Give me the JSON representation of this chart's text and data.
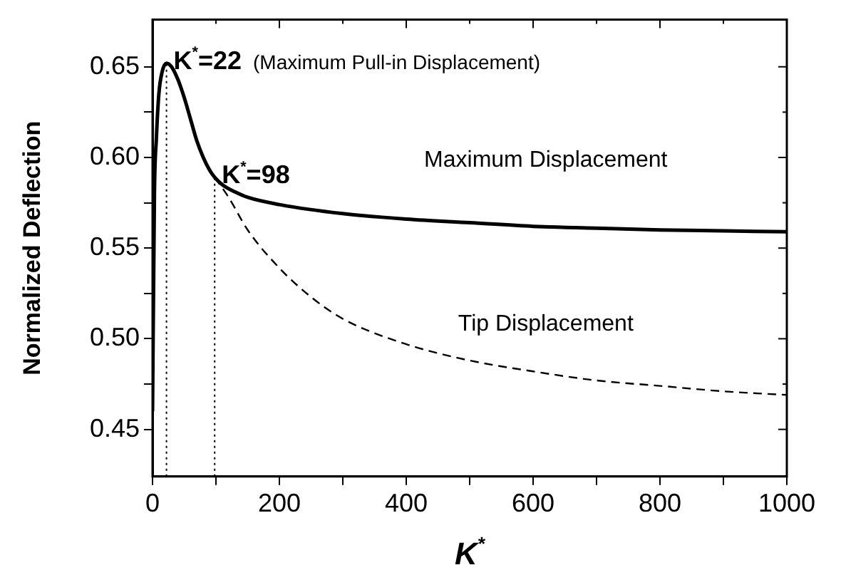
{
  "chart_data": {
    "type": "line",
    "xlabel": "K$^{*}$",
    "ylabel": "Normalized Deflection",
    "xlim": [
      0,
      1000
    ],
    "ylim": [
      0.424,
      0.676
    ],
    "xticks": [
      0,
      {
        "value": 100,
        "label": null
      },
      200,
      {
        "value": 300,
        "label": null
      },
      400,
      {
        "value": 500,
        "label": null
      },
      600,
      {
        "value": 700,
        "label": null
      },
      800,
      {
        "value": 900,
        "label": null
      },
      1000
    ],
    "yticks": [
      {
        "value": 0.45,
        "label": "0.45"
      },
      {
        "value": 0.475,
        "label": null
      },
      {
        "value": 0.5,
        "label": "0.50"
      },
      {
        "value": 0.525,
        "label": null
      },
      {
        "value": 0.55,
        "label": "0.55"
      },
      {
        "value": 0.575,
        "label": null
      },
      {
        "value": 0.6,
        "label": "0.60"
      },
      {
        "value": 0.625,
        "label": null
      },
      {
        "value": 0.65,
        "label": "0.65"
      }
    ],
    "grid": false,
    "legend": false,
    "marker": "none",
    "series": [
      {
        "name": "Maximum Displacement",
        "color": "#000000",
        "line_style": "solid",
        "x": [
          0,
          3,
          6,
          10,
          15,
          22,
          30,
          40,
          50,
          60,
          70,
          80,
          90,
          98,
          110,
          130,
          150,
          200,
          300,
          400,
          500,
          600,
          700,
          800,
          900,
          1000
        ],
        "values": [
          0.46,
          0.58,
          0.61,
          0.635,
          0.647,
          0.652,
          0.65,
          0.643,
          0.633,
          0.621,
          0.609,
          0.6,
          0.593,
          0.589,
          0.585,
          0.581,
          0.578,
          0.574,
          0.569,
          0.566,
          0.564,
          0.562,
          0.561,
          0.56,
          0.5595,
          0.559
        ]
      },
      {
        "name": "Tip Displacement",
        "color": "#000000",
        "line_style": "dashed",
        "x": [
          98,
          120,
          150,
          200,
          250,
          300,
          400,
          500,
          600,
          700,
          800,
          900,
          1000
        ],
        "values": [
          0.589,
          0.578,
          0.56,
          0.539,
          0.523,
          0.511,
          0.497,
          0.488,
          0.482,
          0.477,
          0.474,
          0.471,
          0.469
        ]
      }
    ],
    "ref_lines": [
      {
        "axis": "x",
        "value": 22,
        "line_style": "dotted",
        "color": "#000000"
      },
      {
        "axis": "x",
        "value": 98,
        "line_style": "dotted",
        "color": "#000000"
      }
    ],
    "annotations": [
      {
        "text": "K$^{*}$=22",
        "x": 22,
        "y": 0.652
      },
      "(Maximum Pull-in Displacement)",
      {
        "text": "K$^{*}$=98",
        "x": 98,
        "y": 0.589
      }
    ]
  }
}
